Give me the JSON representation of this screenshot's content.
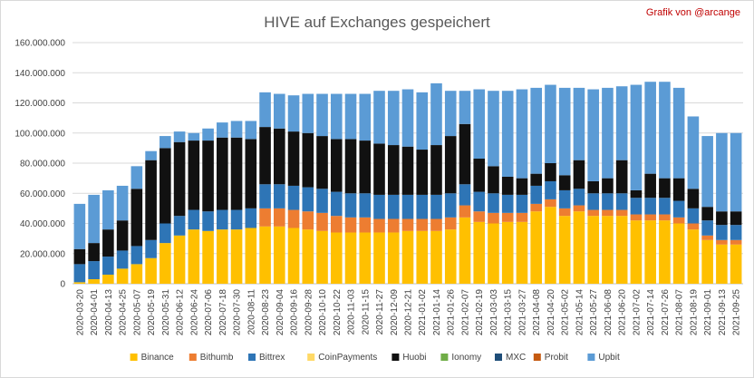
{
  "chart_data": {
    "type": "bar",
    "stacked": true,
    "title": "HIVE auf Exchanges gespeichert",
    "credit": "Grafik von @arcange",
    "xlabel": "",
    "ylabel": "",
    "ylim": [
      0,
      160000000
    ],
    "y_ticks": [
      "0",
      "20.000.000",
      "40.000.000",
      "60.000.000",
      "80.000.000",
      "100.000.000",
      "120.000.000",
      "140.000.000",
      "160.000.000"
    ],
    "grid": true,
    "legend_position": "bottom",
    "categories": [
      "2020-03-20",
      "2020-04-01",
      "2020-04-13",
      "2020-04-25",
      "2020-05-07",
      "2020-05-19",
      "2020-05-31",
      "2020-06-12",
      "2020-06-24",
      "2020-07-06",
      "2020-07-18",
      "2020-07-30",
      "2020-08-11",
      "2020-08-23",
      "2020-09-04",
      "2020-09-16",
      "2020-09-28",
      "2020-10-10",
      "2020-10-22",
      "2020-11-03",
      "2020-11-15",
      "2020-11-27",
      "2020-12-09",
      "2020-12-21",
      "2021-01-02",
      "2021-01-14",
      "2021-01-26",
      "2021-02-07",
      "2021-02-19",
      "2021-03-03",
      "2021-03-15",
      "2021-03-27",
      "2021-04-08",
      "2021-04-20",
      "2021-05-02",
      "2021-05-14",
      "2021-05-27",
      "2021-06-08",
      "2021-06-20",
      "2021-07-02",
      "2021-07-14",
      "2021-07-26",
      "2021-08-07",
      "2021-08-19",
      "2021-09-01",
      "2021-09-13",
      "2021-09-25"
    ],
    "series": [
      {
        "name": "Binance",
        "color": "#FFC000",
        "values": [
          1000000,
          3000000,
          6000000,
          10000000,
          13000000,
          17000000,
          27000000,
          32000000,
          36000000,
          35000000,
          36000000,
          36000000,
          37000000,
          38000000,
          38000000,
          37000000,
          36000000,
          35000000,
          34000000,
          34000000,
          34000000,
          34000000,
          34000000,
          35000000,
          35000000,
          35000000,
          36000000,
          44000000,
          41000000,
          40000000,
          41000000,
          41000000,
          48000000,
          51000000,
          45000000,
          48000000,
          45000000,
          45000000,
          45000000,
          42000000,
          42000000,
          42000000,
          40000000,
          36000000,
          29000000,
          26000000,
          26000000
        ]
      },
      {
        "name": "Bithumb",
        "color": "#ED7D31",
        "values": [
          0,
          0,
          0,
          0,
          0,
          0,
          0,
          0,
          0,
          0,
          0,
          0,
          0,
          12000000,
          12000000,
          12000000,
          12000000,
          12000000,
          11000000,
          10000000,
          10000000,
          9000000,
          9000000,
          8000000,
          8000000,
          8000000,
          8000000,
          8000000,
          7000000,
          7000000,
          6000000,
          6000000,
          5000000,
          5000000,
          5000000,
          4000000,
          4000000,
          4000000,
          4000000,
          4000000,
          4000000,
          4000000,
          4000000,
          4000000,
          3000000,
          3000000,
          3000000
        ]
      },
      {
        "name": "Bittrex",
        "color": "#2E75B6",
        "values": [
          12000000,
          12000000,
          12000000,
          12000000,
          12000000,
          12000000,
          13000000,
          13000000,
          13000000,
          13000000,
          13000000,
          13000000,
          13000000,
          16000000,
          16000000,
          16000000,
          16000000,
          16000000,
          16000000,
          16000000,
          16000000,
          16000000,
          16000000,
          16000000,
          16000000,
          16000000,
          16000000,
          14000000,
          13000000,
          13000000,
          12000000,
          12000000,
          12000000,
          12000000,
          12000000,
          11000000,
          11000000,
          11000000,
          11000000,
          11000000,
          11000000,
          11000000,
          11000000,
          10000000,
          10000000,
          10000000,
          10000000
        ]
      },
      {
        "name": "CoinPayments",
        "color": "#FFD966",
        "values": [
          0,
          0,
          0,
          0,
          0,
          0,
          0,
          0,
          0,
          0,
          0,
          0,
          0,
          0,
          0,
          0,
          0,
          0,
          0,
          0,
          0,
          0,
          0,
          0,
          0,
          0,
          0,
          0,
          0,
          0,
          0,
          0,
          0,
          0,
          0,
          0,
          0,
          0,
          0,
          0,
          0,
          0,
          0,
          0,
          0,
          0,
          0
        ]
      },
      {
        "name": "Huobi",
        "color": "#111111",
        "values": [
          10000000,
          12000000,
          18000000,
          20000000,
          38000000,
          53000000,
          50000000,
          49000000,
          46000000,
          47000000,
          48000000,
          48000000,
          46000000,
          38000000,
          37000000,
          36000000,
          36000000,
          35000000,
          35000000,
          36000000,
          35000000,
          34000000,
          33000000,
          32000000,
          30000000,
          33000000,
          38000000,
          40000000,
          22000000,
          18000000,
          12000000,
          11000000,
          8000000,
          12000000,
          10000000,
          19000000,
          8000000,
          10000000,
          22000000,
          5000000,
          16000000,
          13000000,
          15000000,
          13000000,
          9000000,
          9000000,
          9000000
        ]
      },
      {
        "name": "Ionomy",
        "color": "#70AD47",
        "values": [
          0,
          0,
          0,
          0,
          0,
          0,
          0,
          0,
          0,
          0,
          0,
          0,
          0,
          0,
          0,
          0,
          0,
          0,
          0,
          0,
          0,
          0,
          0,
          0,
          0,
          0,
          0,
          0,
          0,
          0,
          0,
          0,
          0,
          0,
          0,
          0,
          0,
          0,
          0,
          0,
          0,
          0,
          0,
          0,
          0,
          0,
          0
        ]
      },
      {
        "name": "MXC",
        "color": "#1F4E79",
        "values": [
          0,
          0,
          0,
          0,
          0,
          0,
          0,
          0,
          0,
          0,
          0,
          0,
          0,
          0,
          0,
          0,
          0,
          0,
          0,
          0,
          0,
          0,
          0,
          0,
          0,
          0,
          0,
          0,
          0,
          0,
          0,
          0,
          0,
          0,
          0,
          0,
          0,
          0,
          0,
          0,
          0,
          0,
          0,
          0,
          0,
          0,
          0
        ]
      },
      {
        "name": "Probit",
        "color": "#C55A11",
        "values": [
          0,
          0,
          0,
          0,
          0,
          0,
          0,
          0,
          0,
          0,
          0,
          0,
          0,
          0,
          0,
          0,
          0,
          0,
          0,
          0,
          0,
          0,
          0,
          0,
          0,
          0,
          0,
          0,
          0,
          0,
          0,
          0,
          0,
          0,
          0,
          0,
          0,
          0,
          0,
          0,
          0,
          0,
          0,
          0,
          0,
          0,
          0
        ]
      },
      {
        "name": "Upbit",
        "color": "#5B9BD5",
        "values": [
          30000000,
          32000000,
          26000000,
          23000000,
          15000000,
          6000000,
          8000000,
          7000000,
          5000000,
          8000000,
          10000000,
          11000000,
          12000000,
          23000000,
          23000000,
          24000000,
          26000000,
          28000000,
          30000000,
          30000000,
          31000000,
          35000000,
          36000000,
          38000000,
          38000000,
          41000000,
          30000000,
          22000000,
          46000000,
          50000000,
          57000000,
          59000000,
          57000000,
          52000000,
          58000000,
          48000000,
          61000000,
          60000000,
          49000000,
          70000000,
          61000000,
          64000000,
          60000000,
          48000000,
          47000000,
          52000000,
          52000000
        ]
      }
    ]
  }
}
